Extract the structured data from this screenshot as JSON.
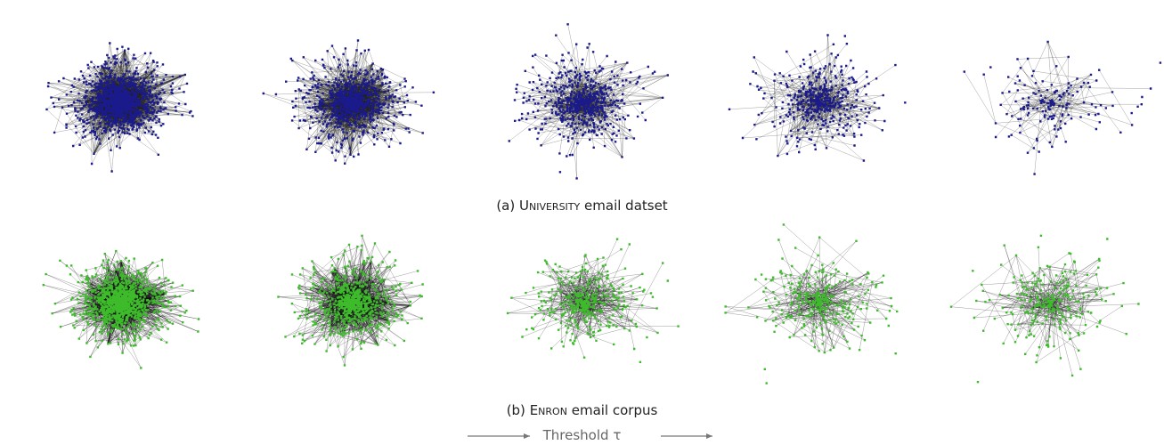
{
  "caption_a": {
    "label": "(a)",
    "name": "University",
    "rest": "email datset"
  },
  "caption_b": {
    "label": "(b)",
    "name": "Enron",
    "rest": "email corpus"
  },
  "axis_label": "Threshold τ"
}
